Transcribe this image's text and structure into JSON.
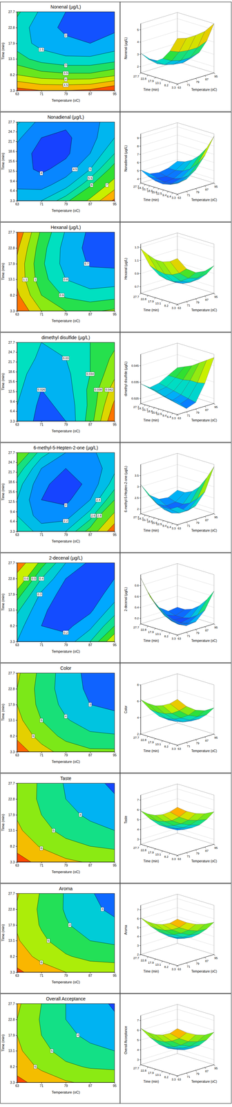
{
  "chart_data": [
    {
      "type": "contour",
      "title": "Nonenal (µg/L)",
      "x_label": "Temperature (oC)",
      "y_label": "Time (min)",
      "x": [
        63,
        71,
        79,
        87,
        95
      ],
      "y": [
        3.3,
        8.2,
        13.1,
        17.9,
        22.8,
        27.7
      ],
      "z": [
        [
          5.2,
          5.0,
          5.0,
          5.1,
          5.5
        ],
        [
          4.0,
          3.7,
          3.6,
          3.6,
          3.9
        ],
        [
          3.2,
          2.8,
          2.6,
          2.6,
          2.8
        ],
        [
          2.8,
          2.3,
          2.1,
          2.0,
          2.2
        ],
        [
          2.8,
          2.2,
          1.9,
          1.8,
          1.9
        ],
        [
          3.1,
          2.4,
          2.0,
          1.9,
          2.0
        ]
      ],
      "xlim": [
        63,
        95
      ],
      "ylim": [
        3.3,
        27.7
      ],
      "xticks": [
        63,
        71,
        79,
        87,
        95
      ],
      "yticks": [
        3.3,
        8.2,
        13.1,
        17.9,
        22.8,
        27.7
      ],
      "zlim": [
        1.5,
        5.5
      ],
      "zticks": [
        2,
        3,
        4,
        5
      ],
      "contour_levels": [
        2.0,
        2.5,
        3.0,
        3.5,
        4.0,
        4.5,
        5.0
      ]
    },
    {
      "type": "contour",
      "title": "Nonadienal (µg/L)",
      "x_label": "Temperature (oC)",
      "y_label": "Time (min)",
      "x": [
        63,
        71,
        79,
        87,
        95
      ],
      "y": [
        3.3,
        8.2,
        13.1,
        17.9,
        22.8,
        27.7
      ],
      "z": [
        [
          4.8,
          5.0,
          5.8,
          7.2,
          9.2
        ],
        [
          4.4,
          4.3,
          4.8,
          5.9,
          7.5
        ],
        [
          4.2,
          3.9,
          4.2,
          5.0,
          6.3
        ],
        [
          4.3,
          3.8,
          3.9,
          4.5,
          5.5
        ],
        [
          4.6,
          4.0,
          3.9,
          4.3,
          5.0
        ],
        [
          5.1,
          4.3,
          4.1,
          4.3,
          4.8
        ]
      ],
      "xlim": [
        63,
        95
      ],
      "ylim": [
        3.3,
        27.7
      ],
      "xticks": [
        63,
        71,
        79,
        87,
        95
      ],
      "yticks": [
        3.3,
        6.4,
        9.4,
        12.5,
        15.6,
        18.6,
        21.7,
        24.7,
        27.7
      ],
      "zlim": [
        3.5,
        9.5
      ],
      "zticks": [
        4,
        5,
        6,
        7,
        8,
        9
      ],
      "contour_levels": [
        4.0,
        4.5,
        5.0,
        5.5,
        6.0,
        7.0,
        8.0,
        9.0
      ]
    },
    {
      "type": "contour",
      "title": "Hexanal (µg/L)",
      "x_label": "Temperature (oC)",
      "y_label": "Time (min)",
      "x": [
        63,
        71,
        79,
        87,
        95
      ],
      "y": [
        3.3,
        8.2,
        13.1,
        17.9,
        22.8,
        27.7
      ],
      "z": [
        [
          1.3,
          1.1,
          1.0,
          0.98,
          1.02
        ],
        [
          1.22,
          1.0,
          0.88,
          0.84,
          0.86
        ],
        [
          1.18,
          0.94,
          0.8,
          0.74,
          0.75
        ],
        [
          1.18,
          0.92,
          0.76,
          0.69,
          0.68
        ],
        [
          1.22,
          0.94,
          0.76,
          0.67,
          0.65
        ],
        [
          1.28,
          0.98,
          0.79,
          0.68,
          0.65
        ]
      ],
      "xlim": [
        63,
        95
      ],
      "ylim": [
        3.3,
        27.7
      ],
      "xticks": [
        63,
        71,
        79,
        87,
        95
      ],
      "yticks": [
        3.3,
        8.2,
        13.1,
        17.9,
        22.8,
        27.7
      ],
      "zlim": [
        0.6,
        1.35
      ],
      "zticks": [
        0.7,
        0.9,
        1.1,
        1.3
      ],
      "contour_levels": [
        0.7,
        0.8,
        0.9,
        1.0,
        1.1,
        1.2
      ]
    },
    {
      "type": "contour",
      "title": "dimethyl disulfide (µg/L)",
      "x_label": "Temperature (oC)",
      "y_label": "Time (min)",
      "x": [
        63,
        71,
        79,
        87,
        95
      ],
      "y": [
        3.3,
        8.2,
        13.1,
        17.9,
        22.8,
        27.7
      ],
      "z": [
        [
          0.03,
          0.024,
          0.026,
          0.036,
          0.05
        ],
        [
          0.03,
          0.025,
          0.027,
          0.035,
          0.047
        ],
        [
          0.031,
          0.026,
          0.028,
          0.035,
          0.044
        ],
        [
          0.032,
          0.027,
          0.029,
          0.034,
          0.041
        ],
        [
          0.033,
          0.029,
          0.03,
          0.034,
          0.039
        ],
        [
          0.034,
          0.03,
          0.031,
          0.034,
          0.037
        ]
      ],
      "xlim": [
        63,
        95
      ],
      "ylim": [
        3.3,
        27.7
      ],
      "xticks": [
        63,
        71,
        79,
        87,
        95
      ],
      "yticks": [
        3.3,
        6.4,
        9.4,
        12.5,
        15.6,
        18.6,
        21.7,
        24.7,
        27.7
      ],
      "zlim": [
        0.022,
        0.052
      ],
      "zticks": [
        0.025,
        0.035,
        0.045
      ],
      "contour_levels": [
        0.026,
        0.03,
        0.034,
        0.038,
        0.042,
        0.046
      ]
    },
    {
      "type": "contour",
      "title": "6-methyl-5-Hepten-2-one (µg/L)",
      "x_label": "Temperature (oC)",
      "y_label": "Time (min)",
      "x": [
        63,
        71,
        79,
        87,
        95
      ],
      "y": [
        3.3,
        8.2,
        13.1,
        17.9,
        22.8,
        27.7
      ],
      "z": [
        [
          2.6,
          2.3,
          2.4,
          2.9,
          3.9
        ],
        [
          2.4,
          2.1,
          2.1,
          2.5,
          3.3
        ],
        [
          2.4,
          2.0,
          1.95,
          2.2,
          2.8
        ],
        [
          2.5,
          2.05,
          1.9,
          2.05,
          2.5
        ],
        [
          2.75,
          2.2,
          2.0,
          2.05,
          2.35
        ],
        [
          3.1,
          2.5,
          2.2,
          2.15,
          2.35
        ]
      ],
      "xlim": [
        63,
        95
      ],
      "ylim": [
        3.3,
        27.7
      ],
      "xticks": [
        63,
        71,
        79,
        87,
        95
      ],
      "yticks": [
        3.3,
        6.4,
        9.4,
        12.5,
        15.6,
        18.6,
        21.7,
        24.7,
        27.7
      ],
      "zlim": [
        1.8,
        4.0
      ],
      "zticks": [
        2,
        2.5,
        3,
        3.5
      ],
      "contour_levels": [
        2.0,
        2.2,
        2.4,
        2.6,
        2.8,
        3.2,
        3.6
      ]
    },
    {
      "type": "contour",
      "title": "2-decenal (µg/L)",
      "x_label": "Temperature (oC)",
      "y_label": "Time (min)",
      "x": [
        63,
        71,
        79,
        87,
        95
      ],
      "y": [
        3.3,
        8.2,
        13.1,
        17.9,
        22.8,
        27.7
      ],
      "z": [
        [
          0.3,
          0.22,
          0.24,
          0.4,
          0.7
        ],
        [
          0.34,
          0.2,
          0.17,
          0.27,
          0.5
        ],
        [
          0.42,
          0.22,
          0.14,
          0.18,
          0.35
        ],
        [
          0.55,
          0.28,
          0.15,
          0.14,
          0.25
        ],
        [
          0.72,
          0.4,
          0.2,
          0.14,
          0.2
        ],
        [
          0.94,
          0.55,
          0.3,
          0.18,
          0.2
        ]
      ],
      "xlim": [
        63,
        95
      ],
      "ylim": [
        3.3,
        27.7
      ],
      "xticks": [
        63,
        71,
        79,
        87,
        95
      ],
      "yticks": [
        3.3,
        8.2,
        13.1,
        17.9,
        22.8,
        27.7
      ],
      "zlim": [
        0.1,
        1.0
      ],
      "zticks": [
        0.2,
        0.4,
        0.6,
        0.8
      ],
      "contour_levels": [
        0.2,
        0.3,
        0.4,
        0.5,
        0.6,
        0.8
      ]
    },
    {
      "type": "contour",
      "title": "Color",
      "x_label": "Temperature (oC)",
      "y_label": "Time (min)",
      "x": [
        63,
        71,
        79,
        87,
        95
      ],
      "y": [
        3.3,
        8.2,
        13.1,
        17.9,
        22.8,
        27.7
      ],
      "z": [
        [
          7.6,
          6.4,
          5.6,
          5.2,
          5.2
        ],
        [
          6.8,
          5.6,
          4.7,
          4.2,
          4.1
        ],
        [
          6.3,
          5.0,
          4.1,
          3.5,
          3.3
        ],
        [
          6.0,
          4.7,
          3.7,
          3.0,
          2.8
        ],
        [
          6.0,
          4.6,
          3.5,
          2.8,
          2.5
        ],
        [
          6.2,
          4.7,
          3.5,
          2.7,
          2.4
        ]
      ],
      "xlim": [
        63,
        95
      ],
      "ylim": [
        3.3,
        27.7
      ],
      "xticks": [
        63,
        71,
        79,
        87,
        95
      ],
      "yticks": [
        3.3,
        8.2,
        13.1,
        17.9,
        22.8,
        27.7
      ],
      "zlim": [
        2,
        8
      ],
      "zticks": [
        2,
        4,
        6,
        8
      ],
      "contour_levels": [
        3,
        4,
        5,
        6,
        7
      ]
    },
    {
      "type": "contour",
      "title": "Taste",
      "x_label": "Temperature (oC)",
      "y_label": "Time (min)",
      "x": [
        63,
        71,
        79,
        87,
        95
      ],
      "y": [
        3.3,
        8.2,
        13.1,
        17.9,
        22.8,
        27.7
      ],
      "z": [
        [
          7.4,
          6.7,
          6.2,
          5.9,
          5.8
        ],
        [
          6.7,
          5.9,
          5.3,
          5.0,
          4.8
        ],
        [
          6.2,
          5.3,
          4.7,
          4.3,
          4.0
        ],
        [
          5.9,
          5.0,
          4.3,
          3.8,
          3.5
        ],
        [
          5.8,
          4.8,
          4.0,
          3.5,
          3.1
        ],
        [
          5.9,
          4.8,
          3.9,
          3.3,
          2.8
        ]
      ],
      "xlim": [
        63,
        95
      ],
      "ylim": [
        3.3,
        27.7
      ],
      "xticks": [
        63,
        71,
        79,
        87,
        95
      ],
      "yticks": [
        3.3,
        8.2,
        13.1,
        17.9,
        22.8,
        27.7
      ],
      "zlim": [
        2.5,
        7.5
      ],
      "zticks": [
        3,
        4,
        5,
        6,
        7
      ],
      "contour_levels": [
        3,
        4,
        5,
        6,
        7
      ]
    },
    {
      "type": "contour",
      "title": "Aroma",
      "x_label": "Temperature (oC)",
      "y_label": "Time (min)",
      "x": [
        63,
        71,
        79,
        87,
        95
      ],
      "y": [
        3.3,
        8.2,
        13.1,
        17.9,
        22.8,
        27.7
      ],
      "z": [
        [
          7.2,
          6.5,
          6.0,
          5.7,
          5.6
        ],
        [
          6.5,
          5.7,
          5.1,
          4.7,
          4.6
        ],
        [
          6.1,
          5.2,
          4.5,
          4.0,
          3.8
        ],
        [
          5.9,
          4.9,
          4.1,
          3.5,
          3.2
        ],
        [
          5.9,
          4.8,
          3.9,
          3.2,
          2.8
        ],
        [
          6.1,
          4.9,
          3.9,
          3.1,
          2.5
        ]
      ],
      "xlim": [
        63,
        95
      ],
      "ylim": [
        3.3,
        27.7
      ],
      "xticks": [
        63,
        71,
        79,
        87,
        95
      ],
      "yticks": [
        3.3,
        8.2,
        13.1,
        17.9,
        22.8,
        27.7
      ],
      "zlim": [
        2,
        7.5
      ],
      "zticks": [
        2,
        3,
        4,
        5,
        6,
        7
      ],
      "contour_levels": [
        3,
        4,
        5,
        6,
        7
      ]
    },
    {
      "type": "contour",
      "title": "Overall Acceptance",
      "x_label": "Temperature (oC)",
      "y_label": "Time (min)",
      "x": [
        63,
        71,
        79,
        87,
        95
      ],
      "y": [
        3.3,
        8.2,
        13.1,
        17.9,
        22.8,
        27.7
      ],
      "z": [
        [
          7.3,
          6.6,
          6.1,
          5.8,
          5.8
        ],
        [
          6.6,
          5.8,
          5.2,
          4.9,
          4.8
        ],
        [
          6.2,
          5.3,
          4.6,
          4.2,
          4.0
        ],
        [
          6.0,
          5.0,
          4.2,
          3.8,
          3.5
        ],
        [
          6.0,
          4.9,
          4.0,
          3.5,
          3.1
        ],
        [
          6.2,
          5.0,
          4.0,
          3.3,
          2.9
        ]
      ],
      "xlim": [
        63,
        95
      ],
      "ylim": [
        3.3,
        27.7
      ],
      "xticks": [
        63,
        71,
        79,
        87,
        95
      ],
      "yticks": [
        3.3,
        8.2,
        13.1,
        17.9,
        22.8,
        27.7
      ],
      "zlim": [
        2.5,
        7.5
      ],
      "zticks": [
        3,
        4,
        5,
        6,
        7
      ],
      "contour_levels": [
        3,
        4,
        5,
        6,
        7
      ]
    }
  ]
}
